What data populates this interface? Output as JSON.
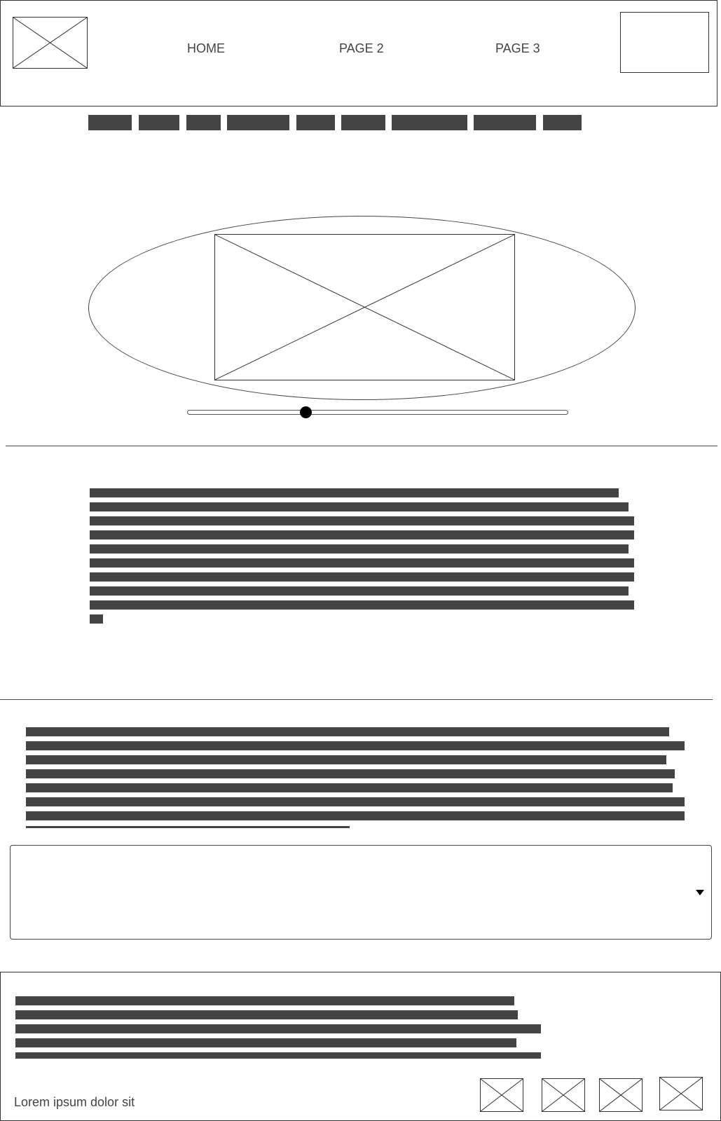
{
  "header": {
    "logo_icon": "image-placeholder-icon",
    "nav": [
      {
        "label": "HOME"
      },
      {
        "label": "PAGE 2"
      },
      {
        "label": "PAGE 3"
      }
    ]
  },
  "subnav": {
    "item_count": 9
  },
  "hero": {
    "image_icon": "image-placeholder-icon",
    "slider": {
      "value": 0.31
    }
  },
  "section1": {
    "text_line_count": 10
  },
  "section2": {
    "text_line_count": 8
  },
  "dropdown": {
    "selected": "",
    "icon": "caret-down-icon"
  },
  "footer": {
    "caption": "Lorem ipsum dolor sit",
    "social_icons": [
      "image-placeholder-icon",
      "image-placeholder-icon",
      "image-placeholder-icon",
      "image-placeholder-icon"
    ]
  },
  "colors": {
    "line": "#333333",
    "block": "#444444",
    "background": "#ffffff"
  }
}
